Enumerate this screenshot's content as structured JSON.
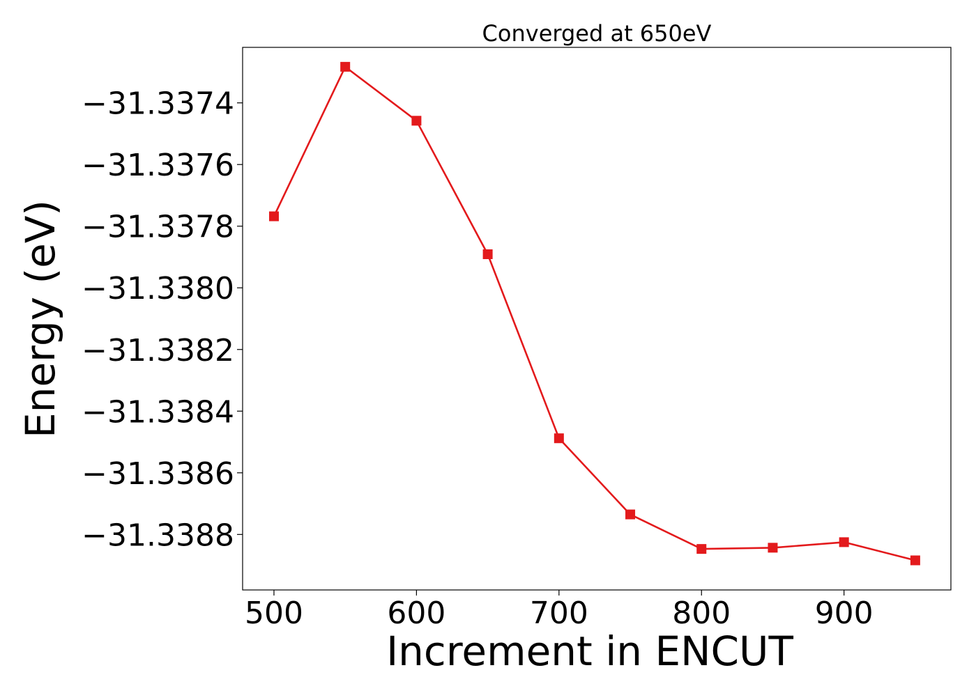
{
  "chart_data": {
    "type": "line",
    "title": "Converged at 650eV",
    "xlabel": "Increment in ENCUT",
    "ylabel": "Energy (eV)",
    "xlim": [
      478,
      975
    ],
    "ylim": [
      -31.33898,
      -31.33722
    ],
    "x_ticks": [
      500,
      600,
      700,
      800,
      900
    ],
    "x_tick_labels": [
      "500",
      "600",
      "700",
      "800",
      "900"
    ],
    "y_ticks": [
      -31.3374,
      -31.3376,
      -31.3378,
      -31.338,
      -31.3382,
      -31.3384,
      -31.3386,
      -31.3388
    ],
    "y_tick_labels": [
      "−31.3374",
      "−31.3376",
      "−31.3378",
      "−31.3380",
      "−31.3382",
      "−31.3384",
      "−31.3386",
      "−31.3388"
    ],
    "grid": false,
    "legend": "none",
    "series": [
      {
        "color": "#e31a1c",
        "marker": "square",
        "x": [
          500,
          550,
          600,
          650,
          700,
          750,
          800,
          850,
          900,
          950
        ],
        "y": [
          -31.337768,
          -31.337283,
          -31.337458,
          -31.337891,
          -31.338488,
          -31.338735,
          -31.338847,
          -31.338843,
          -31.338825,
          -31.338884
        ]
      }
    ]
  }
}
